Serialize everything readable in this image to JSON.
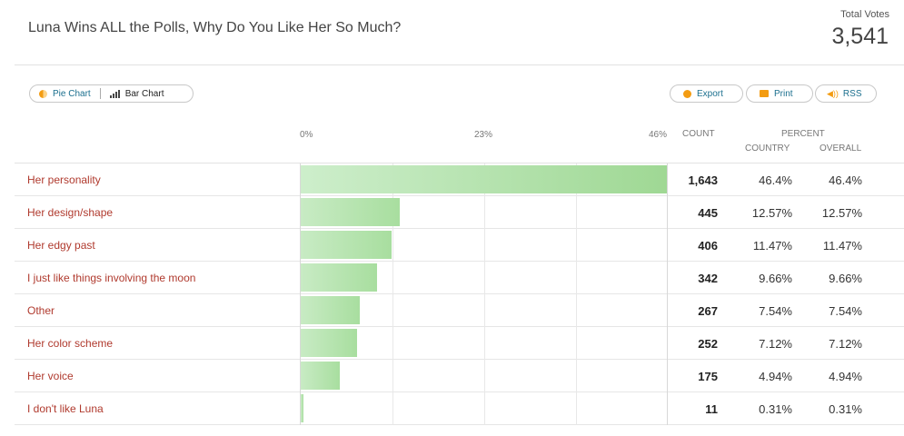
{
  "header": {
    "title": "Luna Wins ALL the Polls, Why Do You Like Her So Much?",
    "total_label": "Total Votes",
    "total_value": "3,541"
  },
  "toolbar": {
    "pie_label": "Pie Chart",
    "bar_label": "Bar Chart",
    "export_label": "Export",
    "print_label": "Print",
    "rss_label": "RSS"
  },
  "columns": {
    "count": "COUNT",
    "percent": "PERCENT",
    "country": "COUNTRY",
    "overall": "OVERALL"
  },
  "chart_data": {
    "type": "bar",
    "orientation": "horizontal",
    "title": "Luna Wins ALL the Polls, Why Do You Like Her So Much?",
    "x_ticks": [
      "0%",
      "23%",
      "46%"
    ],
    "xlim": [
      0,
      46.4
    ],
    "categories": [
      "Her personality",
      "Her design/shape",
      "Her edgy past",
      "I just like things involving the moon",
      "Other",
      "Her color scheme",
      "Her voice",
      "I don't like Luna"
    ],
    "counts": [
      "1,643",
      "445",
      "406",
      "342",
      "267",
      "252",
      "175",
      "11"
    ],
    "values": [
      46.4,
      12.57,
      11.47,
      9.66,
      7.54,
      7.12,
      4.94,
      0.31
    ],
    "country": [
      "46.4%",
      "12.57%",
      "11.47%",
      "9.66%",
      "7.54%",
      "7.12%",
      "4.94%",
      "0.31%"
    ],
    "overall": [
      "46.4%",
      "12.57%",
      "11.47%",
      "9.66%",
      "7.54%",
      "7.12%",
      "4.94%",
      "0.31%"
    ]
  }
}
